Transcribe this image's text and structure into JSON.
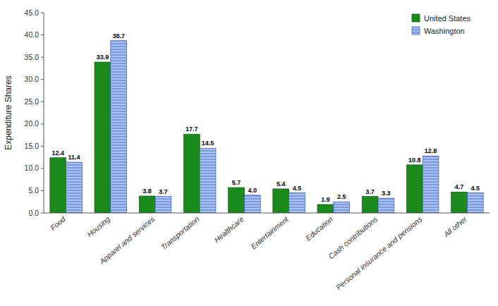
{
  "chart_data": {
    "type": "bar",
    "categories": [
      "Food",
      "Housing",
      "Apparel and services",
      "Transportation",
      "Healthcare",
      "Entertainment",
      "Education",
      "Cash contributions",
      "Personal insurance and pensions",
      "All other"
    ],
    "series": [
      {
        "name": "United States",
        "color": "#1a8a1a",
        "values": [
          12.4,
          33.9,
          3.8,
          17.7,
          5.7,
          5.4,
          1.9,
          3.7,
          10.8,
          4.7
        ]
      },
      {
        "name": "Washington",
        "color": "#aac4f0",
        "values": [
          11.4,
          38.7,
          3.7,
          14.5,
          4.0,
          4.5,
          2.5,
          3.3,
          12.8,
          4.5
        ],
        "value_labels": [
          "11.4",
          "38.7",
          "3.7",
          "14.5",
          "4.0",
          "4.5",
          "2.5",
          "3.3",
          "12.8",
          "4.5"
        ]
      }
    ],
    "ylabel": "Expenditure Shares",
    "ylim": [
      0,
      45
    ],
    "yticks": [
      {
        "value": 0,
        "label": "0.0"
      },
      {
        "value": 5,
        "label": "5.0"
      },
      {
        "value": 10,
        "label": "10.0"
      },
      {
        "value": 15,
        "label": "15.0"
      },
      {
        "value": 20,
        "label": "20.0"
      },
      {
        "value": 25,
        "label": "25.0"
      },
      {
        "value": 30,
        "label": "30.0"
      },
      {
        "value": 35,
        "label": "35.0"
      },
      {
        "value": 40,
        "label": "40.0"
      },
      {
        "value": 45,
        "label": "45.0"
      }
    ],
    "grid": false,
    "legend": "upper right",
    "data_labels": true
  }
}
